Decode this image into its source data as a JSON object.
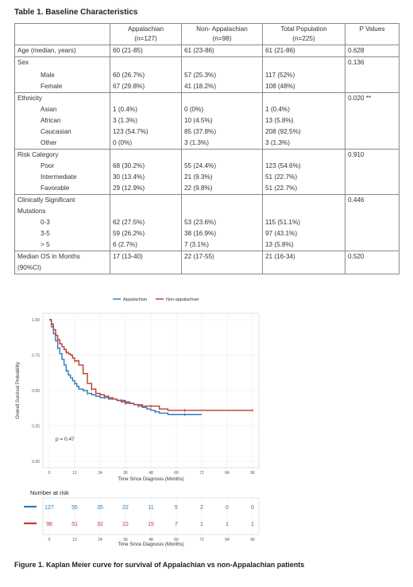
{
  "table": {
    "title": "Table 1. Baseline Characteristics",
    "headers": [
      "",
      "Appalachian\n(n=127)",
      "Non- Appalachian\n(n=98)",
      "Total Population\n(n=225)",
      "P Values"
    ],
    "head_lines": [
      [
        "Appalachian",
        "(n=127)"
      ],
      [
        "Non- Appalachian",
        "(n=98)"
      ],
      [
        "Total Population",
        "(n=225)"
      ],
      [
        "P Values",
        ""
      ]
    ],
    "rows": [
      {
        "label": "Age (median, years)",
        "a": "60 (21-85)",
        "n": "61 (23-86)",
        "t": "61 (21-86)",
        "p": "0.628",
        "section": true,
        "indent": false
      },
      {
        "label": "Sex",
        "a": "",
        "n": "",
        "t": "",
        "p": "0.136",
        "section": true,
        "indent": false
      },
      {
        "label": "",
        "a": "",
        "n": "",
        "t": "",
        "p": "",
        "section": false,
        "indent": false
      },
      {
        "label": "Male",
        "a": "60 (26.7%)",
        "n": "57 (25.3%)",
        "t": "117 (52%)",
        "p": "",
        "section": false,
        "indent": true
      },
      {
        "label": "Female",
        "a": "67 (29.8%)",
        "n": "41 (18.2%)",
        "t": "108 (48%)",
        "p": "",
        "section": false,
        "indent": true
      },
      {
        "label": "Ethnicity",
        "a": "",
        "n": "",
        "t": "",
        "p": "0.020 **",
        "section": true,
        "indent": false
      },
      {
        "label": "Asian",
        "a": "1 (0.4%)",
        "n": "0 (0%)",
        "t": "1 (0.4%)",
        "p": "",
        "section": false,
        "indent": true
      },
      {
        "label": "African",
        "a": "3 (1.3%)",
        "n": "10 (4.5%)",
        "t": "13 (5.8%)",
        "p": "",
        "section": false,
        "indent": true
      },
      {
        "label": "Caucasian",
        "a": "123 (54.7%)",
        "n": "85 (37.8%)",
        "t": "208 (92.5%)",
        "p": "",
        "section": false,
        "indent": true
      },
      {
        "label": "Other",
        "a": "0 (0%)",
        "n": "3 (1.3%)",
        "t": "3 (1.3%)",
        "p": "",
        "section": false,
        "indent": true
      },
      {
        "label": "Risk Category",
        "a": "",
        "n": "",
        "t": "",
        "p": "0.910",
        "section": true,
        "indent": false
      },
      {
        "label": "Poor",
        "a": "68 (30.2%)",
        "n": "55 (24.4%)",
        "t": "123 (54.6%)",
        "p": "",
        "section": false,
        "indent": true
      },
      {
        "label": "Intermediate",
        "a": "30 (13.4%)",
        "n": "21 (9.3%)",
        "t": "51 (22.7%)",
        "p": "",
        "section": false,
        "indent": true
      },
      {
        "label": "Favorable",
        "a": "29 (12.9%)",
        "n": "22 (9.8%)",
        "t": "51 (22.7%)",
        "p": "",
        "section": false,
        "indent": true
      },
      {
        "label": "Clinically Significant",
        "a": "",
        "n": "",
        "t": "",
        "p": "0.446",
        "section": true,
        "indent": false
      },
      {
        "label": "Mutations",
        "a": "",
        "n": "",
        "t": "",
        "p": "",
        "section": false,
        "indent": false
      },
      {
        "label": "0-3",
        "a": "62 (27.5%)",
        "n": "53 (23.6%)",
        "t": "115 (51.1%)",
        "p": "",
        "section": false,
        "indent": true
      },
      {
        "label": "3-5",
        "a": "59 (26.2%)",
        "n": "38 (16.9%)",
        "t": "97 (43.1%)",
        "p": "",
        "section": false,
        "indent": true
      },
      {
        "label": "> 5",
        "a": "6 (2.7%)",
        "n": "7 (3.1%)",
        "t": "13 (5.8%)",
        "p": "",
        "section": false,
        "indent": true
      },
      {
        "label": "Median OS in Months",
        "a": "17 (13-40)",
        "n": "22 (17-55)",
        "t": "21 (16-34)",
        "p": "0.520",
        "section": true,
        "indent": false
      },
      {
        "label": "(90%CI)",
        "a": "",
        "n": "",
        "t": "",
        "p": "",
        "section": false,
        "indent": false
      }
    ]
  },
  "figure": {
    "caption": "Figure 1. Kaplan Meier curve for survival of Appalachian vs non-Appalachian patients",
    "pvalue": "p = 0.47",
    "ylabel": "Overall Survival Probability",
    "xlabel": "Time Since Diagnosis (Months)",
    "risk_title": "Number at risk",
    "colors": {
      "appalachian": "#2a7ab8",
      "non_appalachian": "#c0392b"
    }
  },
  "chart_data": {
    "type": "line",
    "title": "",
    "xlabel": "Time Since Diagnosis (Months)",
    "ylabel": "Overall Survival Probability",
    "xlim": [
      0,
      96
    ],
    "ylim": [
      0,
      1
    ],
    "xticks": [
      0,
      12,
      24,
      36,
      48,
      60,
      72,
      84,
      96
    ],
    "yticks": [
      0.0,
      0.25,
      0.5,
      0.75,
      1.0
    ],
    "ytick_labels": [
      "0.00",
      "0.25",
      "0.50",
      "0.75",
      "1.00"
    ],
    "legend_position": "top-center",
    "series": [
      {
        "name": "Appalachian",
        "x": [
          0,
          1,
          2,
          3,
          4,
          5,
          6,
          7,
          8,
          9,
          10,
          11,
          12,
          13,
          14,
          16,
          18,
          20,
          22,
          24,
          26,
          28,
          30,
          32,
          34,
          36,
          38,
          40,
          42,
          44,
          46,
          48,
          50,
          52,
          56,
          60,
          64,
          68,
          72
        ],
        "y": [
          1.0,
          0.95,
          0.9,
          0.85,
          0.8,
          0.76,
          0.72,
          0.68,
          0.64,
          0.61,
          0.59,
          0.57,
          0.55,
          0.53,
          0.51,
          0.5,
          0.48,
          0.47,
          0.46,
          0.45,
          0.45,
          0.44,
          0.44,
          0.43,
          0.43,
          0.42,
          0.41,
          0.4,
          0.39,
          0.38,
          0.37,
          0.36,
          0.35,
          0.34,
          0.33,
          0.33,
          0.33,
          0.33,
          0.33
        ]
      },
      {
        "name": "Non-appalachian",
        "x": [
          0,
          1,
          2,
          3,
          4,
          5,
          6,
          7,
          8,
          9,
          10,
          11,
          12,
          14,
          16,
          18,
          20,
          22,
          24,
          26,
          28,
          30,
          32,
          34,
          36,
          38,
          40,
          44,
          48,
          52,
          56,
          60,
          64,
          72,
          80,
          88,
          96
        ],
        "y": [
          1.0,
          0.97,
          0.93,
          0.89,
          0.86,
          0.83,
          0.81,
          0.79,
          0.77,
          0.76,
          0.75,
          0.73,
          0.71,
          0.68,
          0.62,
          0.55,
          0.51,
          0.48,
          0.47,
          0.46,
          0.45,
          0.44,
          0.43,
          0.42,
          0.41,
          0.41,
          0.4,
          0.39,
          0.39,
          0.37,
          0.36,
          0.36,
          0.36,
          0.36,
          0.36,
          0.36,
          0.36
        ]
      }
    ],
    "risk_table": {
      "times": [
        0,
        12,
        24,
        36,
        48,
        60,
        72,
        84,
        96
      ],
      "Appalachian": [
        127,
        55,
        35,
        22,
        11,
        5,
        2,
        0,
        0
      ],
      "Non-appalachian": [
        98,
        51,
        32,
        22,
        15,
        7,
        1,
        1,
        1
      ]
    }
  }
}
